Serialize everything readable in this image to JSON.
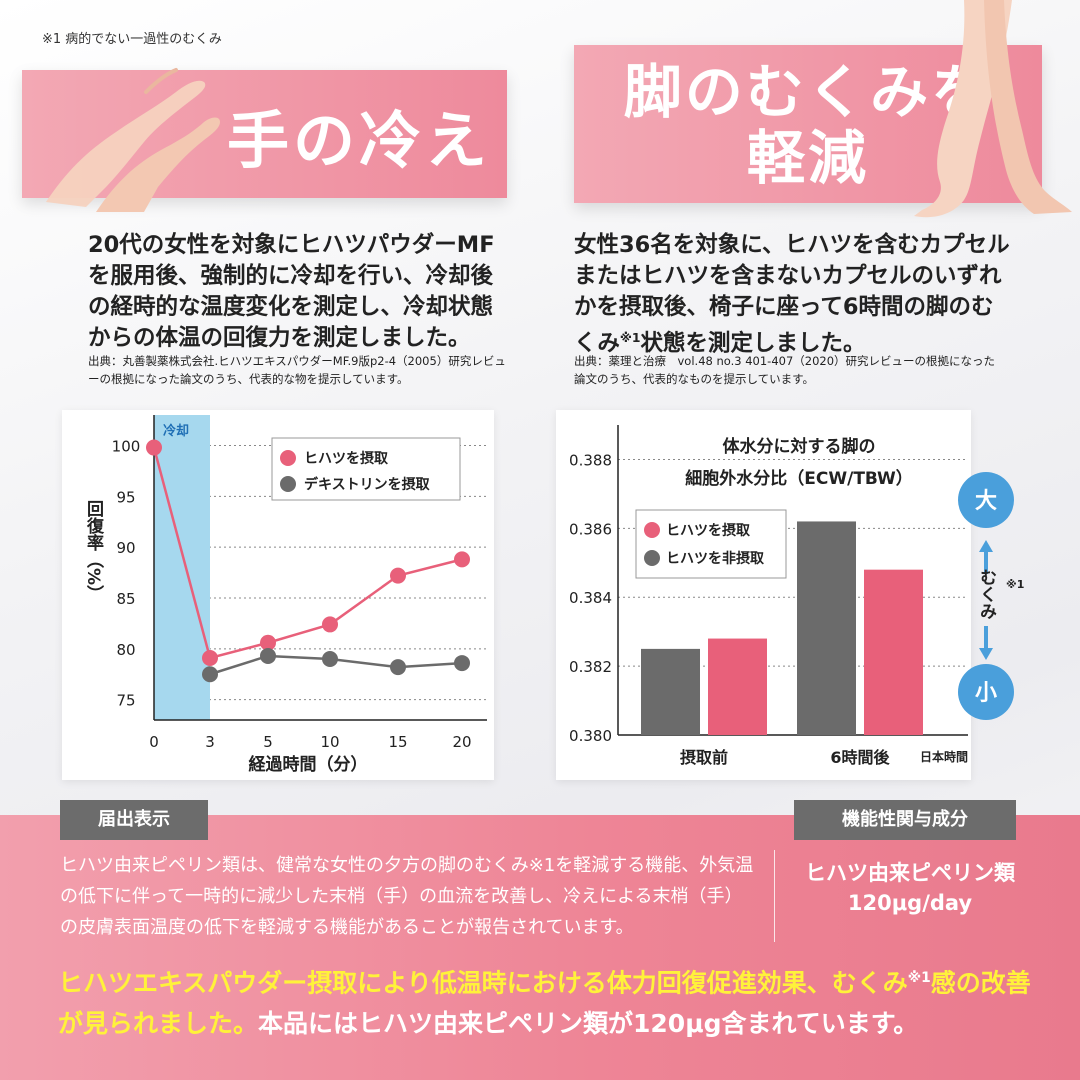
{
  "top_note": "※1 病的でない一過性のむくみ",
  "left": {
    "banner_title": "手の冷え",
    "description": "20代の女性を対象にヒハツパウダーMFを服用後、強制的に冷却を行い、冷却後の経時的な温度変化を測定し、冷却状態からの体温の回復力を測定しました。",
    "source": "出典：丸善製薬株式会社.ヒハツエキスパウダーMF.9版p2-4（2005）研究レビューの根拠になった論文のうち、代表的な物を提示しています。"
  },
  "right": {
    "banner_line1": "脚のむくみを",
    "banner_line2": "軽減",
    "desc_main": "女性36名を対象に、ヒハツを含むカプセルまたはヒハツを含まないカプセルのいずれかを摂取後、椅子に座って6時間の脚のむくみ",
    "desc_sup": "※1",
    "desc_end": "状態を測定しました。",
    "source": "出典：薬理と治療　vol.48 no.3 401-407（2020）研究レビューの根拠になった論文のうち、代表的なものを提示しています。"
  },
  "colors": {
    "pink": "#e8607a",
    "gray": "#6b6b6b",
    "cooling_band": "#a6d8ee",
    "scale_blue": "#4a9fdb",
    "highlight": "#fff23a"
  },
  "chart_data": [
    {
      "type": "line",
      "ylabel": "回復率（%）",
      "xlabel": "経過時間（分）",
      "x": [
        0,
        3,
        5,
        10,
        15,
        20
      ],
      "ylim": [
        73,
        103
      ],
      "yticks": [
        75,
        80,
        85,
        90,
        95,
        100
      ],
      "band_label": "冷却",
      "band_range": [
        0,
        3
      ],
      "grid": true,
      "legend_position": "top-right",
      "series": [
        {
          "name": "ヒハツを摂取",
          "values": [
            99.8,
            79.1,
            80.6,
            82.4,
            87.2,
            88.8
          ]
        },
        {
          "name": "デキストリンを摂取",
          "values": [
            null,
            77.5,
            79.3,
            79.0,
            78.2,
            78.6
          ]
        }
      ]
    },
    {
      "type": "bar",
      "title_line1": "体水分に対する脚の",
      "title_line2": "細胞外水分比（ECW/TBW）",
      "categories": [
        "摂取前",
        "6時間後"
      ],
      "ylim": [
        0.38,
        0.389
      ],
      "yticks": [
        "0.380",
        "0.382",
        "0.384",
        "0.386",
        "0.388"
      ],
      "grid": true,
      "legend_position": "top-left",
      "note": "日本時間",
      "scale_top": "大",
      "scale_bottom": "小",
      "scale_label": "むくみ",
      "scale_sup": "※1",
      "series": [
        {
          "name": "ヒハツを非摂取",
          "values": [
            0.3825,
            0.3862
          ]
        },
        {
          "name": "ヒハツを摂取",
          "values": [
            0.3828,
            0.3848
          ]
        }
      ]
    }
  ],
  "bottom": {
    "tag_left": "届出表示",
    "tag_right": "機能性関与成分",
    "text": "ヒハツ由来ピペリン類は、健常な女性の夕方の脚のむくみ※1を軽減する機能、外気温の低下に伴って一時的に減少した末梢（手）の血流を改善し、冷えによる末梢（手）の皮膚表面温度の低下を軽減する機能があることが報告されています。",
    "ingredient_name": "ヒハツ由来ピペリン類",
    "ingredient_amount": "120μg/day",
    "highlight_yellow_1": "ヒハツエキスパウダー摂取により低温時における体力回復促進効果、むくみ",
    "highlight_sup": "※1",
    "highlight_yellow_2": "感の改善が見られました。",
    "highlight_white": "本品にはヒハツ由来ピペリン類が120μg含まれています。"
  }
}
